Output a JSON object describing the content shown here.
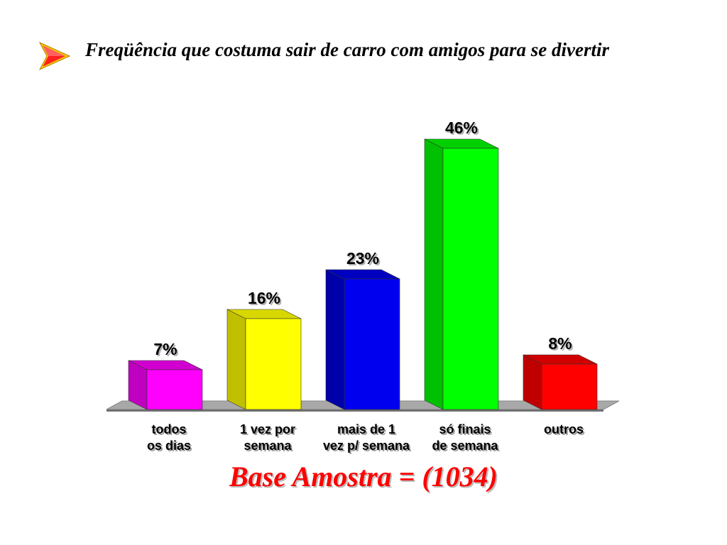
{
  "slide": {
    "title": "Freqüência que costuma sair de carro com amigos para se divertir",
    "base_note": "Base Amostra = (1034)",
    "bullet_icon": "arrow-bullet-icon"
  },
  "chart_data": {
    "type": "bar",
    "categories": [
      [
        "todos",
        "os dias"
      ],
      [
        "1 vez por",
        "semana"
      ],
      [
        "mais de 1",
        "vez p/ semana"
      ],
      [
        "só finais",
        "de semana"
      ],
      [
        "outros"
      ]
    ],
    "values": [
      7,
      16,
      23,
      46,
      8
    ],
    "value_labels": [
      "7%",
      "16%",
      "23%",
      "46%",
      "8%"
    ],
    "ylim": [
      0,
      50
    ],
    "grid": false,
    "legend": "none",
    "colors": [
      {
        "front": "#ff00ff",
        "side": "#c000c0",
        "top": "#d000d0"
      },
      {
        "front": "#ffff00",
        "side": "#c0c000",
        "top": "#d8d800"
      },
      {
        "front": "#0000ee",
        "side": "#0000a8",
        "top": "#0000c0"
      },
      {
        "front": "#00ff00",
        "side": "#00c000",
        "top": "#00d000"
      },
      {
        "front": "#ff0000",
        "side": "#c00000",
        "top": "#d00000"
      }
    ]
  }
}
